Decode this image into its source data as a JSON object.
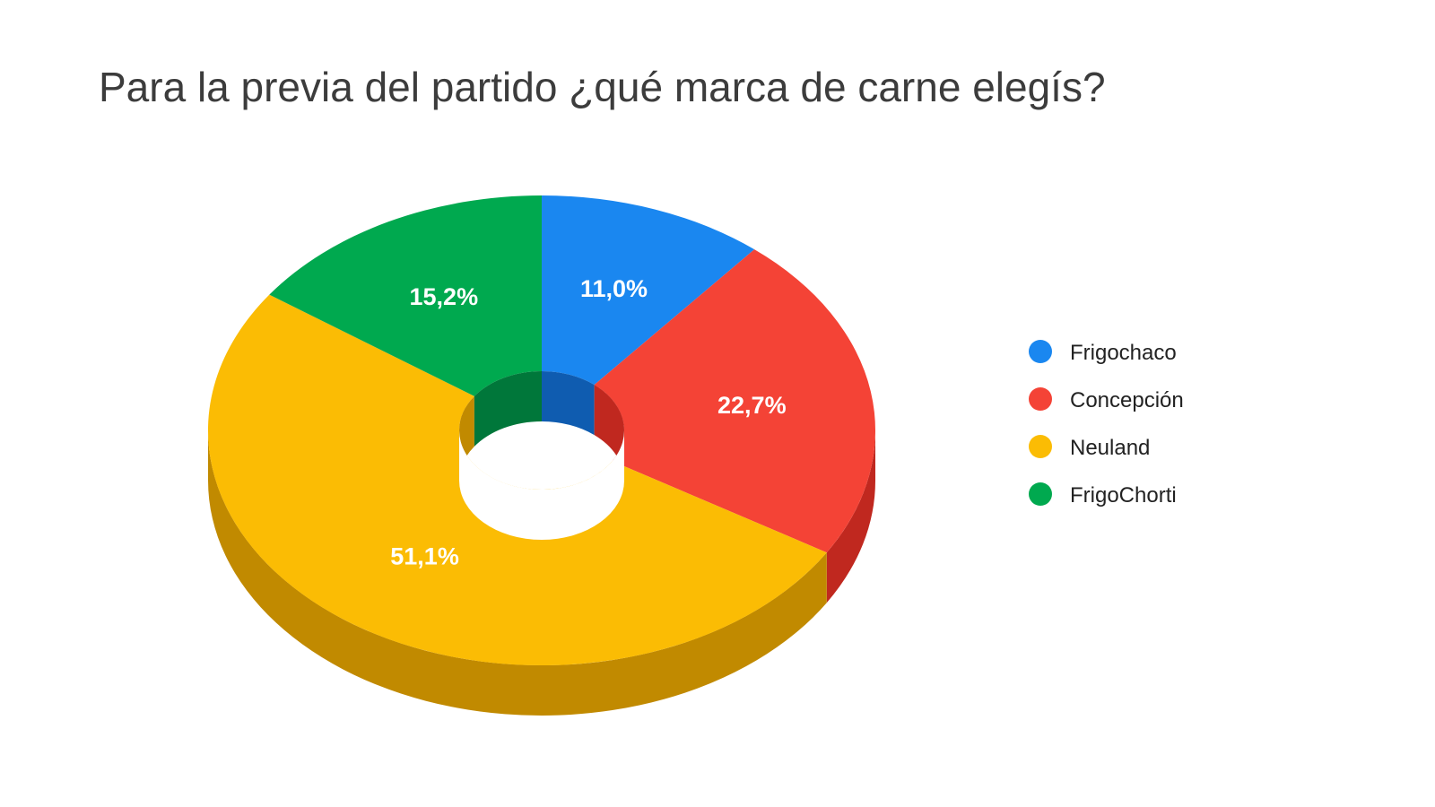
{
  "chart_data": {
    "type": "pie",
    "title": "Para la previa del partido ¿qué marca de carne elegís?",
    "categories": [
      "Frigochaco",
      "Concepción",
      "Neuland",
      "FrigoChorti"
    ],
    "values": [
      11.0,
      22.7,
      51.1,
      15.2
    ],
    "labels": [
      "11,0%",
      "22,7%",
      "51,1%",
      "15,2%"
    ],
    "colors": [
      "#1a87f0",
      "#f44336",
      "#fbbc04",
      "#00a94f"
    ],
    "side_colors": [
      "#0f5cb0",
      "#c0281f",
      "#c18a00",
      "#00773a"
    ],
    "legend": "right",
    "style": "3d-donut"
  }
}
